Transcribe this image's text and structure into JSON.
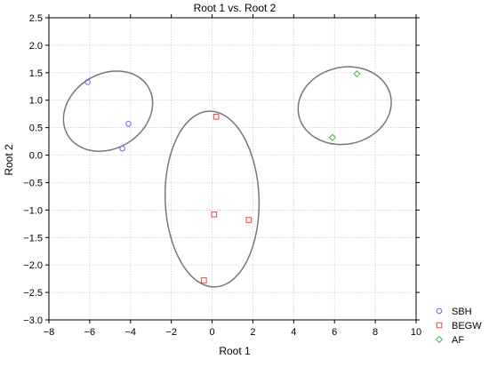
{
  "chart_data": {
    "type": "scatter",
    "title": "Root 1 vs. Root 2",
    "xlabel": "Root 1",
    "ylabel": "Root 2",
    "xlim": [
      -8,
      10
    ],
    "ylim": [
      -3.0,
      2.5
    ],
    "xticks": [
      -8,
      -6,
      -4,
      -2,
      0,
      2,
      4,
      6,
      8,
      10
    ],
    "yticks": [
      -3.0,
      -2.5,
      -2.0,
      -1.5,
      -1.0,
      -0.5,
      0.0,
      0.5,
      1.0,
      1.5,
      2.0,
      2.5
    ],
    "xtick_labels": [
      "−8",
      "−6",
      "−4",
      "−2",
      "0",
      "2",
      "4",
      "6",
      "8",
      "10"
    ],
    "ytick_labels": [
      "−3.0",
      "−2.5",
      "−2.0",
      "−1.5",
      "−1.0",
      "−0.5",
      "0.0",
      "0.5",
      "1.0",
      "1.5",
      "2.0",
      "2.5"
    ],
    "grid": true,
    "legend_position": "bottom-right outside plot",
    "series": [
      {
        "name": "SBH",
        "marker": "circle",
        "color": "#6666ee",
        "points": [
          {
            "x": -6.1,
            "y": 1.33
          },
          {
            "x": -4.1,
            "y": 0.57
          },
          {
            "x": -4.4,
            "y": 0.12
          }
        ],
        "ellipse": {
          "cx": -5.1,
          "cy": 0.8,
          "rx": 2.3,
          "ry": 0.68,
          "angle_deg": -31,
          "color": "#777777"
        }
      },
      {
        "name": "BEGW",
        "marker": "square",
        "color": "#ee4444",
        "points": [
          {
            "x": 0.2,
            "y": 0.7
          },
          {
            "x": 0.1,
            "y": -1.08
          },
          {
            "x": 1.8,
            "y": -1.18
          },
          {
            "x": -0.4,
            "y": -2.28
          }
        ],
        "ellipse": {
          "cx": 0.0,
          "cy": -0.8,
          "rx": 2.3,
          "ry": 1.6,
          "angle_deg": -2,
          "color": "#777777"
        }
      },
      {
        "name": "AF",
        "marker": "diamond",
        "color": "#44bb44",
        "points": [
          {
            "x": 7.1,
            "y": 1.48
          },
          {
            "x": 5.9,
            "y": 0.32
          }
        ],
        "ellipse": {
          "cx": 6.5,
          "cy": 0.9,
          "rx": 2.3,
          "ry": 0.7,
          "angle_deg": -12,
          "color": "#777777"
        }
      }
    ]
  }
}
